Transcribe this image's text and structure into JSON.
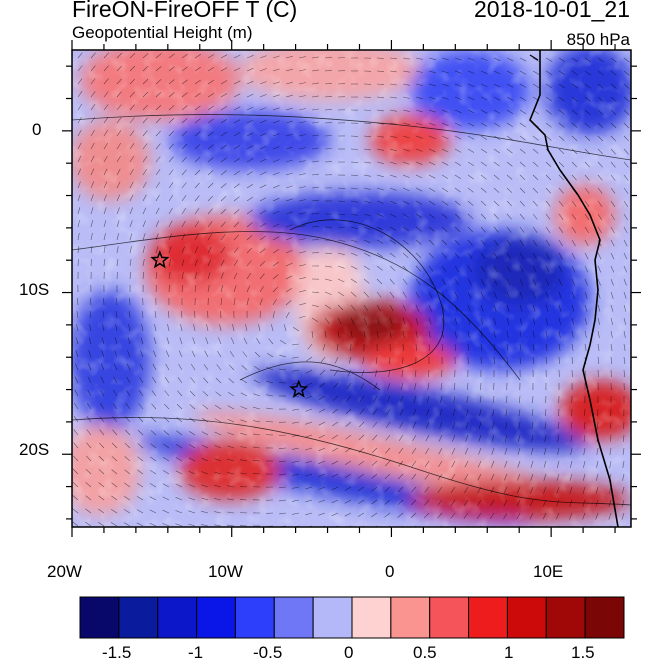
{
  "header": {
    "title_left": "FireON-FireOFF T (C)",
    "title_right": "2018-10-01_21",
    "subtitle_left": "Geopotential Height (m)",
    "subtitle_right": "850 hPa"
  },
  "map": {
    "lon_range": [
      -20,
      15
    ],
    "lat_range": [
      -24.5,
      5
    ],
    "lon_tick_labels": [
      "20W",
      "10W",
      "0",
      "10E"
    ],
    "lat_tick_labels": [
      "0",
      "10S",
      "20S"
    ],
    "markers": [
      {
        "name": "star-marker-1",
        "lon": -14.5,
        "lat": -8
      },
      {
        "name": "star-marker-2",
        "lon": -5.8,
        "lat": -16
      }
    ]
  },
  "colorbar": {
    "labels": [
      "-1.5",
      "-1",
      "-0.5",
      "0",
      "0.5",
      "1",
      "1.5"
    ],
    "colors": [
      "#08086b",
      "#0a1b9e",
      "#0b17c9",
      "#0a16e8",
      "#2e3ffb",
      "#7077f6",
      "#b4b7f8",
      "#fdd2d0",
      "#f99490",
      "#f5545a",
      "#ee1c1c",
      "#cc0a0a",
      "#a00808",
      "#7a0606"
    ]
  }
}
